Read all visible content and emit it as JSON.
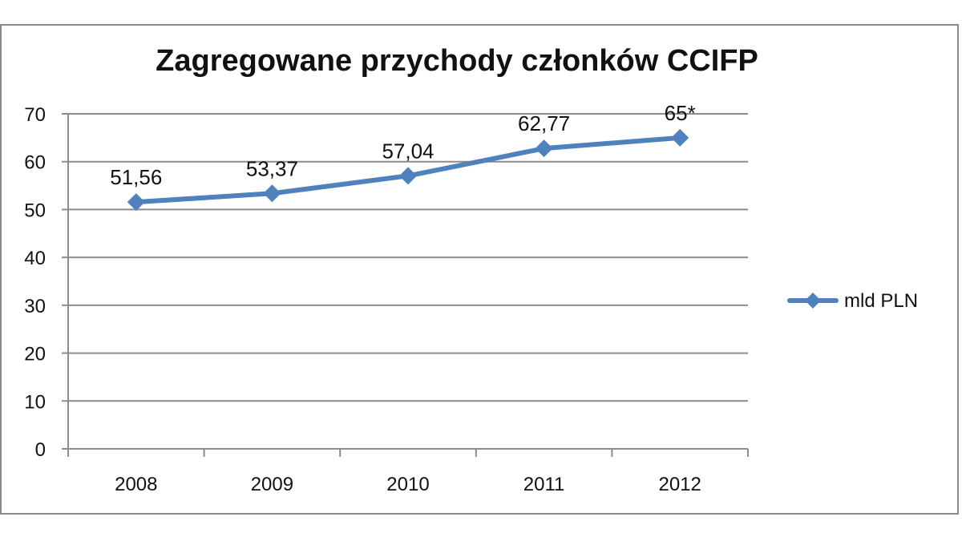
{
  "chart_data": {
    "type": "line",
    "title": "Zagregowane przychody członków CCIFP",
    "categories": [
      "2008",
      "2009",
      "2010",
      "2011",
      "2012"
    ],
    "series": [
      {
        "name": "mld PLN",
        "values": [
          51.56,
          53.37,
          57.04,
          62.77,
          65
        ],
        "data_labels": [
          "51,56",
          "53,37",
          "57,04",
          "62,77",
          "65*"
        ],
        "color": "#4f81bd"
      }
    ],
    "yticks": [
      "0",
      "10",
      "20",
      "30",
      "40",
      "50",
      "60",
      "70"
    ],
    "ylim": [
      0,
      70
    ],
    "grid": true,
    "legend_position": "right"
  }
}
